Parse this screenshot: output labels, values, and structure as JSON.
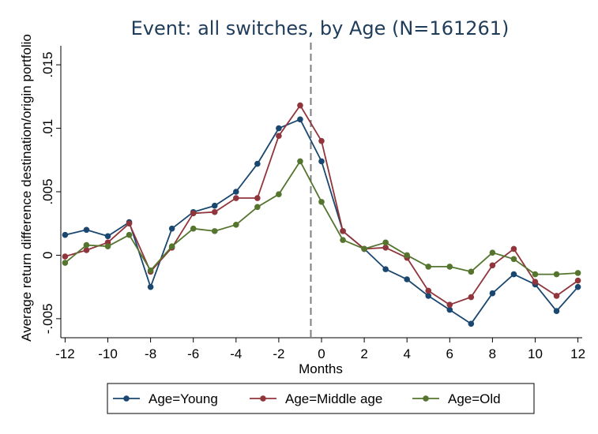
{
  "chart_data": {
    "type": "line",
    "title": "Event: all switches, by Age (N=161261)",
    "xlabel": "Months",
    "ylabel": "Average return difference destination/origin portfolio",
    "xlim": [
      -12.2,
      12.2
    ],
    "ylim": [
      -0.0065,
      0.0165
    ],
    "x_ticks": [
      -12,
      -10,
      -8,
      -6,
      -4,
      -2,
      0,
      2,
      4,
      6,
      8,
      10,
      12
    ],
    "y_ticks": [
      -0.005,
      0,
      0.005,
      0.01,
      0.015
    ],
    "x_tick_labels": [
      "-12",
      "-10",
      "-8",
      "-6",
      "-4",
      "-2",
      "0",
      "2",
      "4",
      "6",
      "8",
      "10",
      "12"
    ],
    "y_tick_labels": [
      "-.005",
      "0",
      ".005",
      ".01",
      ".015"
    ],
    "event_line_x": -0.5,
    "grid": false,
    "legend_position": "bottom",
    "x": [
      -12,
      -11,
      -10,
      -9,
      -8,
      -7,
      -6,
      -5,
      -4,
      -3,
      -2,
      -1,
      0,
      1,
      2,
      3,
      4,
      5,
      6,
      7,
      8,
      9,
      10,
      11,
      12
    ],
    "series": [
      {
        "name": "Age=Young",
        "color": "#1a476f",
        "values": [
          0.0016,
          0.002,
          0.0015,
          0.0026,
          -0.0025,
          0.0021,
          0.0034,
          0.0039,
          0.005,
          0.0072,
          0.01,
          0.0107,
          0.0074,
          0.0019,
          0.0005,
          -0.0011,
          -0.0019,
          -0.0032,
          -0.0043,
          -0.0054,
          -0.003,
          -0.0015,
          -0.0023,
          -0.0044,
          -0.0025
        ]
      },
      {
        "name": "Age=Middle age",
        "color": "#90353b",
        "values": [
          -0.0001,
          0.0004,
          0.001,
          0.0025,
          -0.0013,
          0.0006,
          0.0033,
          0.0034,
          0.0045,
          0.0045,
          0.0094,
          0.0118,
          0.009,
          0.0019,
          0.0005,
          0.0006,
          -0.0002,
          -0.0028,
          -0.0039,
          -0.0033,
          -0.0008,
          0.0005,
          -0.0021,
          -0.0032,
          -0.002
        ]
      },
      {
        "name": "Age=Old",
        "color": "#55752f",
        "values": [
          -0.0006,
          0.0008,
          0.0007,
          0.0016,
          -0.0012,
          0.0007,
          0.0021,
          0.0019,
          0.0024,
          0.0038,
          0.0048,
          0.0074,
          0.0042,
          0.0012,
          0.0005,
          0.001,
          0.0,
          -0.0009,
          -0.0009,
          -0.0013,
          0.0002,
          -0.0003,
          -0.0015,
          -0.0015,
          -0.0014
        ]
      }
    ]
  }
}
